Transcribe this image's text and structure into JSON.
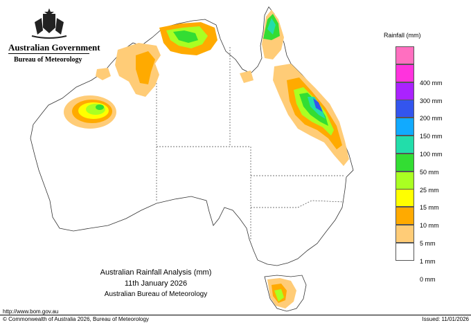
{
  "header": {
    "government": "Australian Government",
    "bureau": "Bureau of Meteorology"
  },
  "map": {
    "title": "Australian Rainfall Analysis (mm)",
    "date": "11th January 2026",
    "source": "Australian Bureau of Meteorology"
  },
  "legend": {
    "title": "Rainfall (mm)",
    "items": [
      {
        "label": "",
        "color": "#ff6fc0"
      },
      {
        "label": "400 mm",
        "color": "#ff33dd"
      },
      {
        "label": "300 mm",
        "color": "#aa22ff"
      },
      {
        "label": "200 mm",
        "color": "#3355ee"
      },
      {
        "label": "150 mm",
        "color": "#11aaff"
      },
      {
        "label": "100 mm",
        "color": "#22ddaa"
      },
      {
        "label": "50 mm",
        "color": "#33dd33"
      },
      {
        "label": "25 mm",
        "color": "#aaff22"
      },
      {
        "label": "15 mm",
        "color": "#ffff00"
      },
      {
        "label": "10 mm",
        "color": "#ffaa00"
      },
      {
        "label": "5 mm",
        "color": "#ffcc77"
      },
      {
        "label": "1 mm",
        "color": "#ffffff"
      },
      {
        "label": "0 mm",
        "color": ""
      }
    ]
  },
  "footer": {
    "url": "http://www.bom.gov.au",
    "copyright": "© Commonwealth of Australia 2026, Bureau of Meteorology",
    "issued": "Issued: 11/01/2026"
  },
  "colors": {
    "outline": "#333333",
    "land": "#ffffff"
  }
}
